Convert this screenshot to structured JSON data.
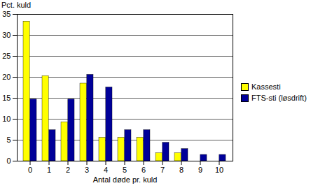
{
  "chart_data": {
    "type": "bar",
    "y_label": "Pct. kuld",
    "x_label": "Antal døde pr. kuld",
    "categories": [
      "0",
      "1",
      "2",
      "3",
      "4",
      "5",
      "6",
      "7",
      "8",
      "9",
      "10"
    ],
    "series": [
      {
        "name": "Kassesti",
        "color": "#ffff00",
        "values": [
          33.3,
          20.3,
          9.3,
          18.5,
          5.6,
          5.6,
          5.6,
          1.9,
          1.9,
          0,
          0
        ]
      },
      {
        "name": "FTS-sti (løsdrift)",
        "color": "#000099",
        "values": [
          14.7,
          7.4,
          14.7,
          20.6,
          17.6,
          7.4,
          7.4,
          4.4,
          2.9,
          1.5,
          1.5
        ]
      }
    ],
    "ylim": [
      0,
      35
    ],
    "yticks": [
      0,
      5,
      10,
      15,
      20,
      25,
      30,
      35
    ],
    "grid": true,
    "legend": "right"
  }
}
